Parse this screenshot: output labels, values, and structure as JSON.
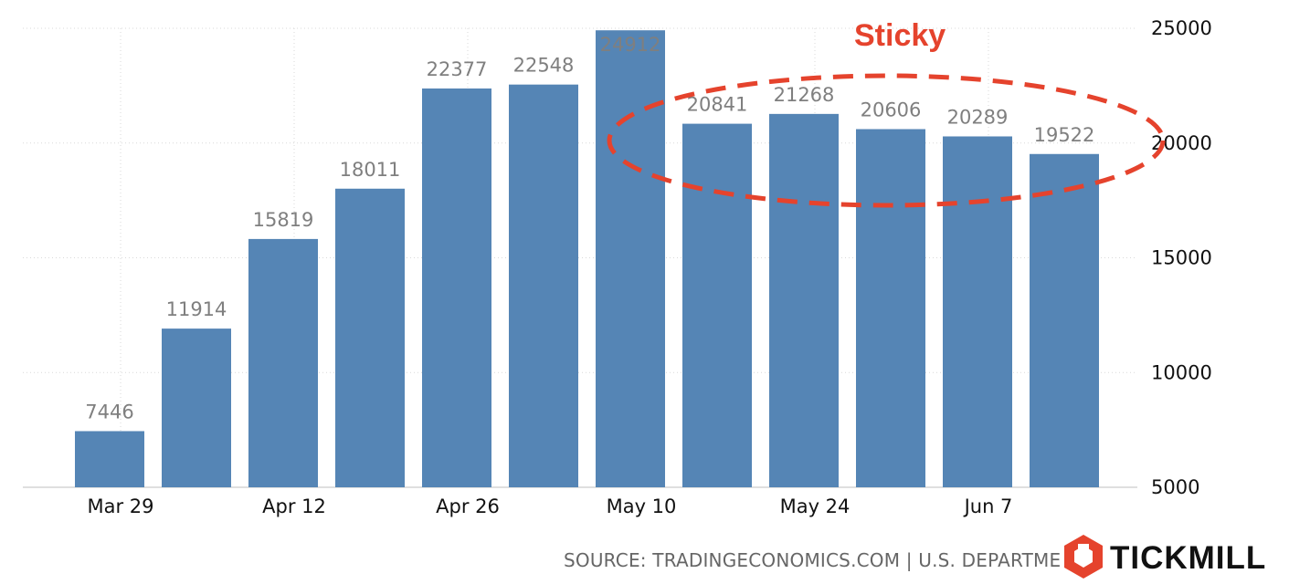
{
  "chart_data": {
    "type": "bar",
    "categories": [
      "Mar 29",
      "",
      "Apr 12",
      "",
      "Apr 26",
      "",
      "May 10",
      "",
      "May 24",
      "",
      "Jun 7",
      ""
    ],
    "values": [
      7446,
      11914,
      15819,
      18011,
      22377,
      22548,
      24912,
      20841,
      21268,
      20606,
      20289,
      19522
    ],
    "data_labels": [
      "7446",
      "11914",
      "15819",
      "18011",
      "22377",
      "22548",
      "24912",
      "20841",
      "21268",
      "20606",
      "20289",
      "19522"
    ],
    "y_ticks": [
      5000,
      10000,
      15000,
      20000,
      25000
    ],
    "ylim": [
      5000,
      25000
    ],
    "y_axis_position": "right",
    "grid": true,
    "annotation": {
      "text": "Sticky",
      "color": "#e5432d"
    },
    "colors": {
      "bar": "#5585b5",
      "data_label": "#7f7f7f"
    }
  },
  "footer": {
    "source": "SOURCE: TRADINGECONOMICS.COM | U.S. DEPARTME"
  },
  "brand": {
    "name": "TICKMILL",
    "logo_icon": "tickmill-hexagon-logo",
    "logo_color": "#e5432d"
  }
}
